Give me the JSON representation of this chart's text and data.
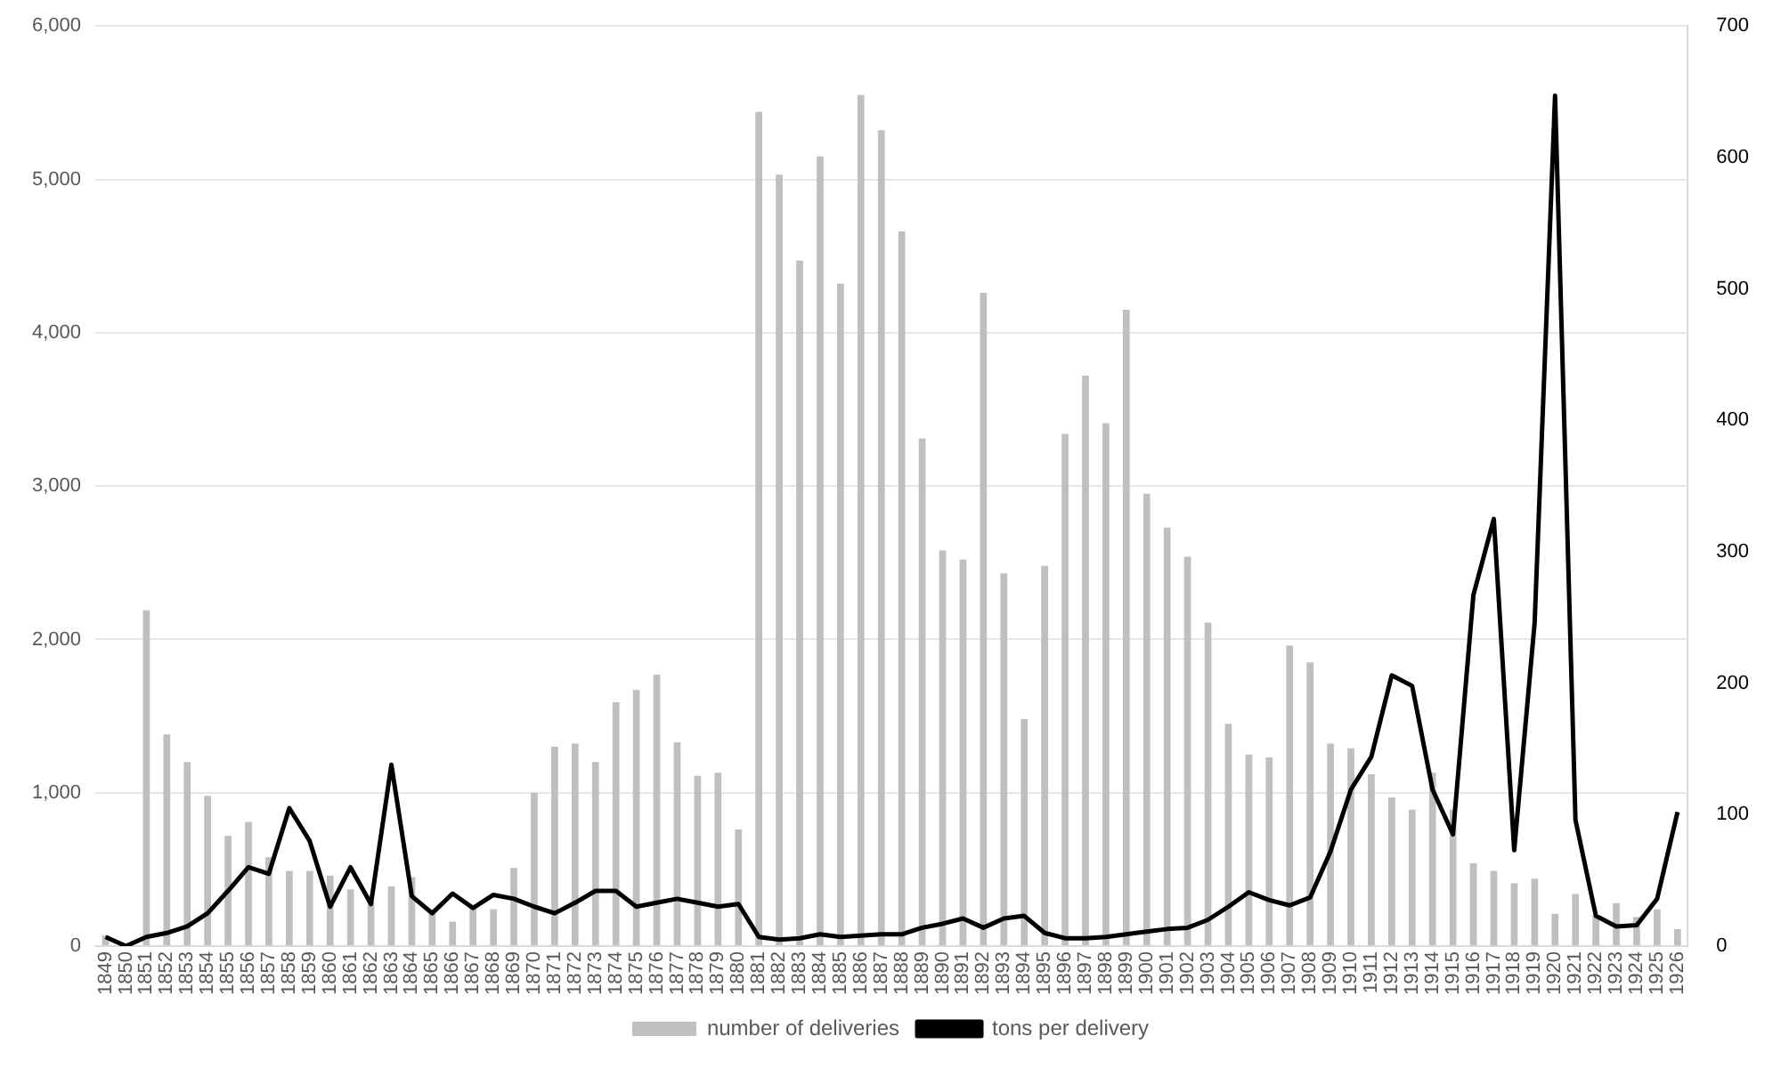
{
  "chart_data": {
    "type": "bar",
    "categories": [
      "1849",
      "1850",
      "1851",
      "1852",
      "1853",
      "1854",
      "1855",
      "1856",
      "1857",
      "1858",
      "1859",
      "1860",
      "1861",
      "1862",
      "1863",
      "1864",
      "1865",
      "1866",
      "1867",
      "1868",
      "1869",
      "1870",
      "1871",
      "1872",
      "1873",
      "1874",
      "1875",
      "1876",
      "1877",
      "1878",
      "1879",
      "1880",
      "1881",
      "1882",
      "1883",
      "1884",
      "1885",
      "1886",
      "1887",
      "1888",
      "1889",
      "1890",
      "1891",
      "1892",
      "1893",
      "1894",
      "1895",
      "1896",
      "1897",
      "1898",
      "1899",
      "1900",
      "1901",
      "1902",
      "1903",
      "1904",
      "1905",
      "1906",
      "1907",
      "1908",
      "1909",
      "1910",
      "1911",
      "1912",
      "1913",
      "1914",
      "1915",
      "1916",
      "1917",
      "1918",
      "1919",
      "1920",
      "1921",
      "1922",
      "1923",
      "1924",
      "1925",
      "1926"
    ],
    "series": [
      {
        "name": "number of deliveries",
        "color": "#bfbfbf",
        "values": [
          70,
          0,
          2190,
          1380,
          1200,
          980,
          720,
          810,
          580,
          490,
          490,
          460,
          370,
          290,
          390,
          450,
          210,
          160,
          260,
          240,
          510,
          1000,
          1300,
          1320,
          1200,
          1590,
          1670,
          1770,
          1330,
          1110,
          1130,
          760,
          5440,
          5030,
          4470,
          5150,
          4320,
          5550,
          5320,
          4660,
          3310,
          2580,
          2520,
          4260,
          2430,
          1480,
          2480,
          3340,
          3720,
          3410,
          4150,
          2950,
          2730,
          2540,
          2110,
          1450,
          1250,
          1230,
          1960,
          1850,
          1320,
          1290,
          1120,
          970,
          890,
          1130,
          890,
          540,
          490,
          410,
          440,
          210,
          340,
          200,
          280,
          190,
          240,
          110
        ]
      },
      {
        "name": "tons per delivery",
        "type": "line",
        "axis": "y2",
        "color": "#000000",
        "values": [
          7,
          0,
          7,
          10,
          15,
          25,
          42,
          60,
          55,
          105,
          80,
          30,
          60,
          32,
          138,
          38,
          25,
          40,
          29,
          39,
          36,
          30,
          25,
          33,
          42,
          42,
          30,
          33,
          36,
          33,
          30,
          32,
          7,
          5,
          6,
          9,
          7,
          8,
          9,
          9,
          14,
          17,
          21,
          14,
          21,
          23,
          10,
          6,
          6,
          7,
          9,
          11,
          13,
          14,
          20,
          30,
          41,
          35,
          31,
          37,
          72,
          119,
          144,
          206,
          198,
          119,
          85,
          267,
          325,
          73,
          246,
          647,
          96,
          23,
          15,
          16,
          36,
          102
        ]
      }
    ],
    "ylim": [
      0,
      6000
    ],
    "yticks": [
      0,
      {
        "value": 1000,
        "label": "1,000"
      },
      {
        "value": 2000,
        "label": "2,000"
      },
      {
        "value": 3000,
        "label": "3,000"
      },
      {
        "value": 4000,
        "label": "4,000"
      },
      {
        "value": 5000,
        "label": "5,000"
      },
      {
        "value": 6000,
        "label": "6,000"
      }
    ],
    "y2lim": [
      0,
      700
    ],
    "y2ticks": [
      0,
      100,
      200,
      300,
      400,
      500,
      600,
      700
    ],
    "grid": "y",
    "legend": "bottom",
    "marker": "none",
    "line_style": "solid"
  }
}
